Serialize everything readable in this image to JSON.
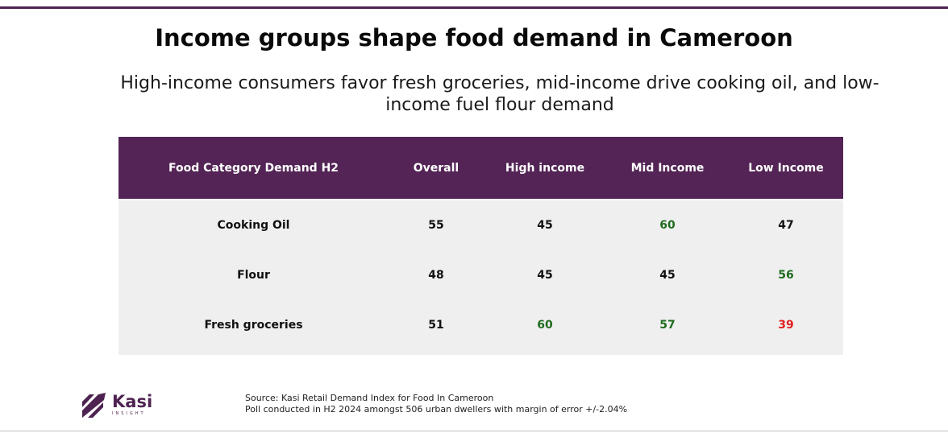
{
  "title": "Income groups shape food demand in Cameroon",
  "subtitle": "High-income consumers favor fresh groceries, mid-income drive cooking oil, and low-income fuel flour demand",
  "colors": {
    "header_bg": "#532455",
    "body_bg": "#efefef",
    "positive": "#1f6b1f",
    "negative": "#e02020",
    "neutral": "#111111"
  },
  "table": {
    "headers": [
      "Food Category Demand H2",
      "Overall",
      "High income",
      "Mid Income",
      "Low Income"
    ],
    "rows": [
      {
        "category": "Cooking Oil",
        "overall": "55",
        "high": "45",
        "mid": "60",
        "low": "47",
        "high_color": "#111111",
        "mid_color": "#1f6b1f",
        "low_color": "#111111"
      },
      {
        "category": "Flour",
        "overall": "48",
        "high": "45",
        "mid": "45",
        "low": "56",
        "high_color": "#111111",
        "mid_color": "#111111",
        "low_color": "#1f6b1f"
      },
      {
        "category": "Fresh groceries",
        "overall": "51",
        "high": "60",
        "mid": "57",
        "low": "39",
        "high_color": "#1f6b1f",
        "mid_color": "#1f6b1f",
        "low_color": "#e02020"
      }
    ]
  },
  "logo": {
    "name": "Kasi",
    "tagline": "INSIGHT",
    "icon": "kasi-logo-icon"
  },
  "source": {
    "line1": "Source:  Kasi Retail Demand Index for Food In Cameroon",
    "line2": "Poll conducted in H2 2024 amongst 506 urban dwellers with margin of error +/-2.04%"
  }
}
